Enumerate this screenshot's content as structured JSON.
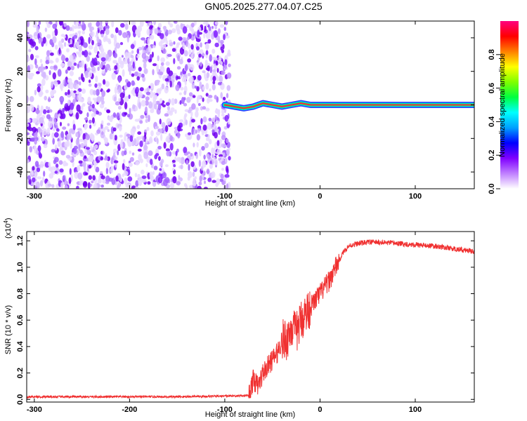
{
  "title": "GN05.2025.277.04.07.C25",
  "chart_data": [
    {
      "type": "heatmap",
      "xlabel": "Height of straight line (km)",
      "ylabel": "Frequency (Hz)",
      "xlim": [
        -308,
        162
      ],
      "ylim": [
        -50,
        50
      ],
      "xticks": [
        -300,
        -200,
        -100,
        0,
        100
      ],
      "xtick_labels": [
        "-300",
        "-200",
        "-100",
        "0",
        "100"
      ],
      "yticks": [
        -40,
        -20,
        0,
        20,
        40
      ],
      "ytick_labels": [
        "-40",
        "-20",
        "0",
        "20",
        "40"
      ],
      "noise_region_x": [
        -308,
        -95
      ],
      "signal_line": [
        {
          "x": -100,
          "y": 0
        },
        {
          "x": -90,
          "y": -1
        },
        {
          "x": -80,
          "y": -2
        },
        {
          "x": -70,
          "y": -1
        },
        {
          "x": -60,
          "y": 1
        },
        {
          "x": -50,
          "y": 0
        },
        {
          "x": -40,
          "y": -1
        },
        {
          "x": -30,
          "y": 0
        },
        {
          "x": -20,
          "y": 1
        },
        {
          "x": -10,
          "y": 0
        },
        {
          "x": 0,
          "y": 0
        },
        {
          "x": 20,
          "y": 0
        },
        {
          "x": 162,
          "y": 0
        }
      ],
      "colorbar": {
        "label": "Normalized spectral amplitude",
        "range": [
          0,
          1
        ],
        "ticks": [
          0.0,
          0.2,
          0.4,
          0.6,
          0.8
        ],
        "tick_labels": [
          "0.0",
          "0.2",
          "0.4",
          "0.6",
          "0.8"
        ],
        "colors": [
          "#ffffff",
          "#c080ff",
          "#8000ff",
          "#0000ff",
          "#00a0ff",
          "#00ffff",
          "#00ff40",
          "#80ff00",
          "#ffff00",
          "#ff8000",
          "#ff0000",
          "#ff0080"
        ]
      }
    },
    {
      "type": "line",
      "xlabel": "Height of straight line (km)",
      "ylabel": "SNR (10 * v/v)",
      "y_scale_note": "(x10",
      "y_scale_exp": "4",
      "xlim": [
        -308,
        162
      ],
      "ylim": [
        -0.02,
        1.27
      ],
      "xticks": [
        -300,
        -200,
        -100,
        0,
        100
      ],
      "xtick_labels": [
        "-300",
        "-200",
        "-100",
        "0",
        "100"
      ],
      "yticks": [
        0.0,
        0.2,
        0.4,
        0.6,
        0.8,
        1.0,
        1.2
      ],
      "ytick_labels": [
        "0.0",
        "0.2",
        "0.4",
        "0.6",
        "0.8",
        "1.0",
        "1.2"
      ],
      "line_color": "#f03030",
      "series": [
        {
          "name": "SNR",
          "points": [
            [
              -308,
              0.02
            ],
            [
              -250,
              0.02
            ],
            [
              -200,
              0.02
            ],
            [
              -150,
              0.02
            ],
            [
              -100,
              0.025
            ],
            [
              -75,
              0.03
            ],
            [
              -70,
              0.15
            ],
            [
              -65,
              0.1
            ],
            [
              -60,
              0.2
            ],
            [
              -55,
              0.25
            ],
            [
              -50,
              0.3
            ],
            [
              -45,
              0.35
            ],
            [
              -40,
              0.45
            ],
            [
              -35,
              0.45
            ],
            [
              -30,
              0.55
            ],
            [
              -25,
              0.5
            ],
            [
              -20,
              0.6
            ],
            [
              -15,
              0.65
            ],
            [
              -10,
              0.7
            ],
            [
              -5,
              0.75
            ],
            [
              0,
              0.8
            ],
            [
              5,
              0.85
            ],
            [
              10,
              0.9
            ],
            [
              15,
              0.98
            ],
            [
              20,
              1.05
            ],
            [
              25,
              1.12
            ],
            [
              30,
              1.16
            ],
            [
              40,
              1.18
            ],
            [
              50,
              1.19
            ],
            [
              60,
              1.19
            ],
            [
              80,
              1.18
            ],
            [
              100,
              1.17
            ],
            [
              120,
              1.16
            ],
            [
              140,
              1.14
            ],
            [
              162,
              1.12
            ]
          ]
        }
      ]
    }
  ]
}
